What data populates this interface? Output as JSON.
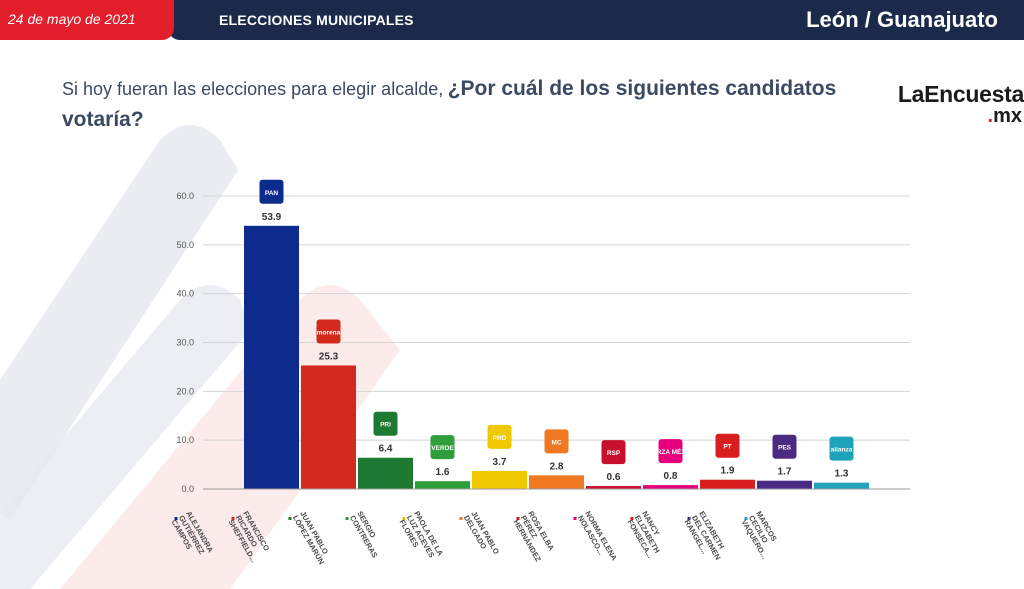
{
  "header": {
    "date": "24 de mayo de 2021",
    "section": "ELECCIONES MUNICIPALES",
    "location": "León / Guanajuato"
  },
  "question": {
    "lead": "Si hoy fueran las elecciones para elegir alcalde,",
    "main": "¿Por cuál de los siguientes candidatos votaría?"
  },
  "brand": {
    "name": "LaEncuesta",
    "tld_dot": ".",
    "tld": "mx"
  },
  "chart_data": {
    "type": "bar",
    "title": "",
    "xlabel": "",
    "ylabel": "",
    "ylim": [
      0,
      60
    ],
    "yticks": [
      "0.0",
      "10.0",
      "20.0",
      "30.0",
      "40.0",
      "50.0",
      "60.0"
    ],
    "grid": true,
    "categories": [
      "ALEJANDRA GUTIÉRREZ CAMPOS",
      "FRANCISCO RICARDO SHEFFIELD...",
      "JUAN PABLO LÓPEZ MARÚN",
      "SERGIO CONTRERAS",
      "PAOLA DE LA LUZ ACEVES FLORES",
      "JUAN PABLO DELGADO",
      "ROSA ELBA PÉREZ HERNÁNDEZ",
      "NORMA ELENA NOLASCO...",
      "NANCY ELIZABETH FONSECA...",
      "ELIZABETH DEL CARMEN RANGEL...",
      "MARCOS CECILIO VAQUERO..."
    ],
    "values": [
      53.9,
      25.3,
      6.4,
      1.6,
      3.7,
      2.8,
      0.6,
      0.8,
      1.9,
      1.7,
      1.3
    ],
    "value_labels": [
      "53.9",
      "25.3",
      "6.4",
      "1.6",
      "3.7",
      "2.8",
      "0.6",
      "0.8",
      "1.9",
      "1.7",
      "1.3"
    ],
    "parties": [
      "PAN",
      "morena",
      "PRI",
      "VERDE",
      "PRD",
      "MC",
      "RSP",
      "FUERZA MÉXICO",
      "PT",
      "PES",
      "alianza"
    ],
    "colors": [
      "#0d2b8c",
      "#d42a1e",
      "#1e7a32",
      "#2e9e3a",
      "#f0c800",
      "#f07820",
      "#c8102e",
      "#e6007e",
      "#d81e1e",
      "#4b2a84",
      "#1fa3b8"
    ]
  }
}
